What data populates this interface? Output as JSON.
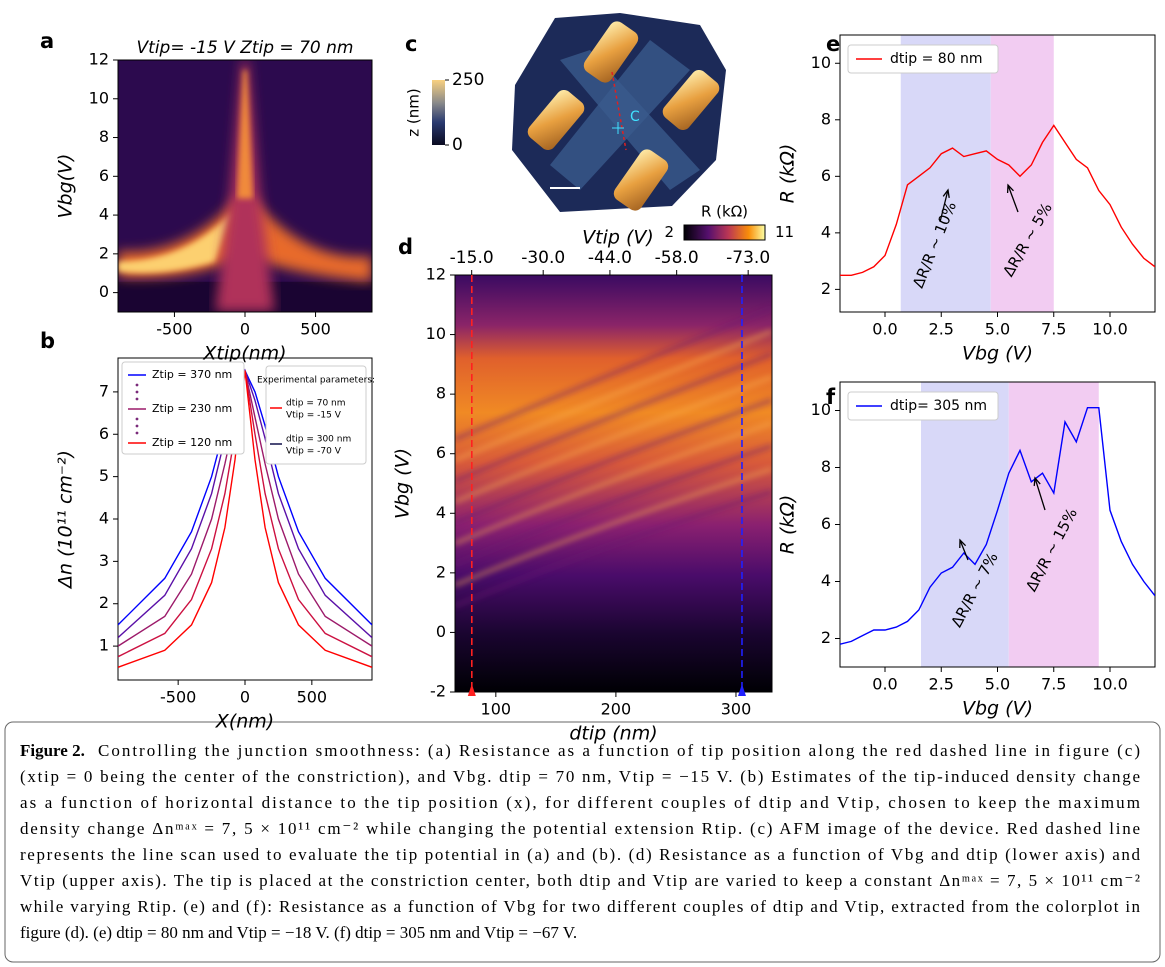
{
  "chart_data": [
    {
      "type": "heatmap",
      "panel": "a",
      "title": "Vtip= -15 V   Ztip = 70 nm",
      "x_label": "Xtip(nm)",
      "y_label": "Vbg(V)",
      "xlim": [
        -900,
        900
      ],
      "xticks": [
        -500,
        0,
        500
      ],
      "ylim": [
        -1,
        12
      ],
      "yticks": [
        0,
        2,
        4,
        6,
        8,
        10,
        12
      ]
    },
    {
      "type": "line",
      "panel": "b",
      "x_label": "X(nm)",
      "y_label": "Δn (10¹¹ cm⁻²)",
      "x": [
        -950,
        -600,
        -400,
        -250,
        -150,
        -75,
        0,
        75,
        150,
        250,
        400,
        600,
        950
      ],
      "series": [
        {
          "name": "Ztip = 370 nm",
          "color": "#0000ff",
          "values": [
            1.5,
            2.6,
            3.7,
            5.0,
            6.2,
            7.0,
            7.5,
            7.0,
            6.2,
            5.0,
            3.7,
            2.6,
            1.5
          ]
        },
        {
          "color": "#5a10a8",
          "values": [
            1.2,
            2.2,
            3.3,
            4.6,
            5.9,
            6.8,
            7.5,
            6.8,
            5.9,
            4.6,
            3.3,
            2.2,
            1.2
          ]
        },
        {
          "name": "Ztip = 230 nm",
          "color": "#9c1a6a",
          "values": [
            1.0,
            1.7,
            2.7,
            4.0,
            5.3,
            6.4,
            7.5,
            6.4,
            5.3,
            4.0,
            2.7,
            1.7,
            1.0
          ]
        },
        {
          "color": "#cc1040",
          "values": [
            0.75,
            1.3,
            2.1,
            3.3,
            4.6,
            6.0,
            7.5,
            6.0,
            4.6,
            3.3,
            2.1,
            1.3,
            0.75
          ]
        },
        {
          "name": "Ztip = 120 nm",
          "color": "#ff0000",
          "values": [
            0.5,
            0.9,
            1.5,
            2.5,
            3.8,
            5.4,
            7.5,
            5.4,
            3.8,
            2.5,
            1.5,
            0.9,
            0.5
          ]
        }
      ],
      "xlim": [
        -950,
        950
      ],
      "xticks": [
        -500,
        0,
        500
      ],
      "ylim": [
        0.2,
        7.8
      ],
      "yticks": [
        1,
        2,
        3,
        4,
        5,
        6,
        7
      ],
      "legend2": {
        "title": "Experimental parameters:",
        "entries": [
          {
            "label": "dtip = 70 nm",
            "sublabel": "Vtip = -15 V",
            "color": "#ff0000"
          },
          {
            "label": "dtip = 300 nm",
            "sublabel": "Vtip = -70 V",
            "color": "#10104a"
          }
        ]
      }
    },
    {
      "type": "image",
      "panel": "c",
      "annotation": "C",
      "colorbar": {
        "label": "z (nm)",
        "lim": [
          0,
          250
        ],
        "ticks": [
          0,
          250
        ]
      }
    },
    {
      "type": "heatmap",
      "panel": "d",
      "x_label": "dtip (nm)",
      "y_label": "Vbg (V)",
      "x2_label": "Vtip (V)",
      "xlim": [
        66,
        330
      ],
      "xticks": [
        100,
        200,
        300
      ],
      "ylim": [
        -2,
        12
      ],
      "yticks": [
        -2,
        0,
        2,
        4,
        6,
        8,
        10,
        12
      ],
      "x2lim": [
        -11.5,
        -78
      ],
      "x2ticks": [
        {
          "value": -15,
          "label": "-15.0"
        },
        {
          "value": -30,
          "label": "-30.0"
        },
        {
          "value": -44,
          "label": "-44.0"
        },
        {
          "value": -58,
          "label": "-58.0"
        },
        {
          "value": -73,
          "label": "-73.0"
        }
      ],
      "markers": [
        {
          "x": 80,
          "color": "#ff2020"
        },
        {
          "x": 305,
          "color": "#2020ff"
        }
      ],
      "colorbar": {
        "label": "R (kΩ)",
        "lim": [
          2,
          11
        ],
        "ticks": [
          2,
          11
        ]
      }
    },
    {
      "type": "line",
      "panel": "e",
      "x_label": "Vbg (V)",
      "y_label": "R (kΩ)",
      "x": [
        -2,
        -1.5,
        -1,
        -0.5,
        0,
        0.5,
        1,
        1.5,
        2,
        2.5,
        3,
        3.5,
        4,
        4.5,
        5,
        5.5,
        6,
        6.5,
        7,
        7.5,
        8,
        8.5,
        9,
        9.5,
        10,
        10.5,
        11,
        11.5,
        12
      ],
      "series": [
        {
          "name": "dtip = 80 nm",
          "color": "#ff0000",
          "values": [
            2.5,
            2.5,
            2.6,
            2.8,
            3.2,
            4.3,
            5.7,
            6.0,
            6.3,
            6.8,
            7.0,
            6.7,
            6.8,
            6.9,
            6.6,
            6.4,
            6.0,
            6.4,
            7.2,
            7.8,
            7.2,
            6.6,
            6.3,
            5.5,
            5.0,
            4.2,
            3.6,
            3.1,
            2.8
          ]
        }
      ],
      "spans": [
        {
          "from": 0.7,
          "to": 4.7,
          "color": "#d8d8f8"
        },
        {
          "from": 4.7,
          "to": 7.5,
          "color": "#f2ccf2"
        }
      ],
      "annotations": [
        "ΔR/R ~ 10%",
        "ΔR/R ~ 5%"
      ],
      "xlim": [
        -2,
        12
      ],
      "xticks": [
        {
          "value": 0,
          "label": "0.0"
        },
        2.5,
        {
          "value": 5,
          "label": "5.0"
        },
        7.5,
        {
          "value": 10,
          "label": "10.0"
        }
      ],
      "ylim": [
        1.2,
        11
      ],
      "yticks": [
        2,
        4,
        6,
        8,
        10
      ]
    },
    {
      "type": "line",
      "panel": "f",
      "x_label": "Vbg (V)",
      "y_label": "R (kΩ)",
      "x": [
        -2,
        -1.5,
        -1,
        -0.5,
        0,
        0.5,
        1,
        1.5,
        2,
        2.5,
        3,
        3.5,
        4,
        4.5,
        5,
        5.5,
        6,
        6.5,
        7,
        7.5,
        8,
        8.5,
        9,
        9.5,
        10,
        10.5,
        11,
        11.5,
        12
      ],
      "series": [
        {
          "name": "dtip= 305 nm",
          "color": "#0000ff",
          "values": [
            1.8,
            1.9,
            2.1,
            2.3,
            2.3,
            2.4,
            2.6,
            3.0,
            3.8,
            4.3,
            4.5,
            5.0,
            4.6,
            5.3,
            6.5,
            7.8,
            8.6,
            7.5,
            7.8,
            7.1,
            9.6,
            8.9,
            10.1,
            10.1,
            6.5,
            5.4,
            4.6,
            4.0,
            3.5
          ]
        }
      ],
      "spans": [
        {
          "from": 1.6,
          "to": 5.5,
          "color": "#d8d8f8"
        },
        {
          "from": 5.5,
          "to": 9.5,
          "color": "#f2ccf2"
        }
      ],
      "annotations": [
        "ΔR/R ~ 7%",
        "ΔR/R ~ 15%"
      ],
      "xlim": [
        -2,
        12
      ],
      "xticks": [
        {
          "value": 0,
          "label": "0.0"
        },
        2.5,
        {
          "value": 5,
          "label": "5.0"
        },
        7.5,
        {
          "value": 10,
          "label": "10.0"
        }
      ],
      "ylim": [
        1,
        11
      ],
      "yticks": [
        2,
        4,
        6,
        8,
        10
      ]
    }
  ],
  "caption": {
    "label": "Figure 2.",
    "lines": [
      "Controlling the junction smoothness: (a) Resistance as a function of tip position along the red dashed line in figure (c)",
      "(xtip = 0 being the center of the constriction), and Vbg. dtip = 70 nm, Vtip = −15 V. (b) Estimates of the tip-induced density change",
      "as a function of horizontal distance to the tip position (x), for different couples of dtip and Vtip, chosen to keep the maximum",
      "density change Δnᵐᵃˣ = 7, 5 × 10¹¹ cm⁻² while changing the potential extension Rtip. (c) AFM image of the device. Red dashed line",
      "represents the line scan used to evaluate the tip potential in (a) and (b). (d) Resistance as a function of Vbg and dtip (lower axis) and",
      "Vtip (upper axis). The tip is placed at the constriction center, both dtip and Vtip are varied to keep a constant Δnᵐᵃˣ = 7, 5 × 10¹¹ cm⁻²",
      "while varying Rtip. (e) and (f): Resistance as a function of Vbg for two different couples of dtip and Vtip, extracted from the colorplot in",
      "figure (d). (e) dtip = 80 nm and Vtip = −18 V. (f) dtip = 305 nm and Vtip = −67 V."
    ]
  }
}
